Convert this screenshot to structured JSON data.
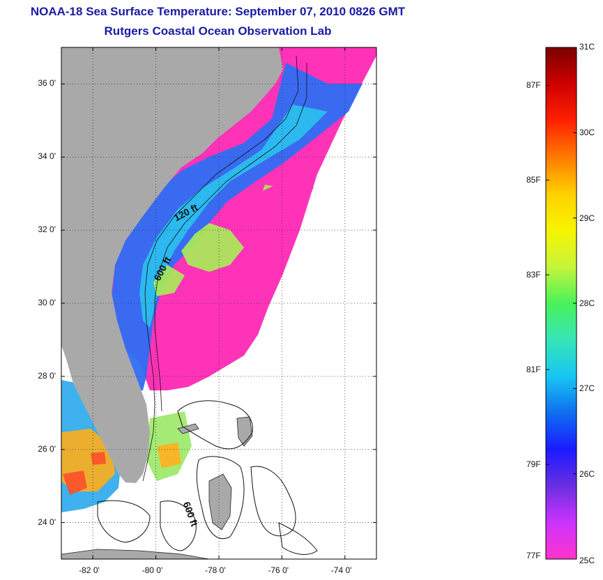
{
  "title": "NOAA-18 Sea Surface Temperature:  September 07, 2010 0826 GMT",
  "subtitle": "Rutgers Coastal Ocean Observation Lab",
  "map": {
    "lon_range": [
      -83.0,
      -73.0
    ],
    "lat_range": [
      23.0,
      37.0
    ],
    "lon_ticks": [
      -82,
      -80,
      -78,
      -76,
      -74
    ],
    "lat_ticks": [
      24,
      26,
      28,
      30,
      32,
      34,
      36
    ],
    "lon_tick_labels": [
      "-82 0'",
      "-80 0'",
      "-78 0'",
      "-76 0'",
      "-74 0'"
    ],
    "lat_tick_labels": [
      "24 0'",
      "26 0'",
      "28 0'",
      "30 0'",
      "32 0'",
      "34 0'",
      "36 0'"
    ],
    "grid": "dotted",
    "land_color": "#a9a9a9",
    "no_data_color": "#ffffff",
    "isobath_labels": [
      {
        "text": "120 ft",
        "lon": -79.0,
        "lat": 32.4,
        "rotation": -28
      },
      {
        "text": "600 ft",
        "lon": -79.7,
        "lat": 30.9,
        "rotation": -62
      },
      {
        "text": "600 ft",
        "lon": -79.0,
        "lat": 24.2,
        "rotation": 70
      }
    ]
  },
  "colorbar": {
    "colors": [
      "#ff33cc",
      "#cc33ff",
      "#6a2fe0",
      "#1a1aff",
      "#0f6ef0",
      "#17c6f3",
      "#36e5b6",
      "#49f25a",
      "#c7f53a",
      "#f7f500",
      "#ffd000",
      "#ff7a00",
      "#ff2000",
      "#d00000",
      "#7a0000"
    ],
    "celsius_labels": [
      "25C",
      "26C",
      "27C",
      "28C",
      "29C",
      "30C",
      "31C"
    ],
    "fahrenheit_labels": [
      "77F",
      "79F",
      "81F",
      "83F",
      "85F",
      "87F"
    ],
    "celsius_range": [
      25,
      31
    ],
    "fahrenheit_values": [
      77,
      79,
      81,
      83,
      85,
      87
    ]
  }
}
